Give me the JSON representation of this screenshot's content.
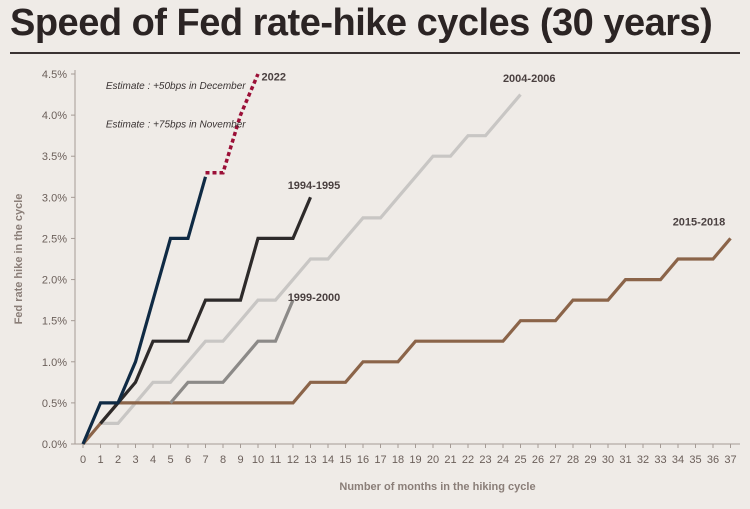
{
  "title": "Speed of Fed rate-hike cycles (30 years)",
  "chart_data": {
    "type": "line",
    "xlabel": "Number of months in the hiking cycle",
    "ylabel": "Fed rate hike in the cycle",
    "xlim": [
      0,
      37
    ],
    "ylim": [
      0,
      4.5
    ],
    "x_ticks": [
      0,
      1,
      2,
      3,
      4,
      5,
      6,
      7,
      8,
      9,
      10,
      11,
      12,
      13,
      14,
      15,
      16,
      17,
      18,
      19,
      20,
      21,
      22,
      23,
      24,
      25,
      26,
      27,
      28,
      29,
      30,
      31,
      32,
      33,
      34,
      35,
      36,
      37
    ],
    "y_ticks": [
      0,
      0.5,
      1.0,
      1.5,
      2.0,
      2.5,
      3.0,
      3.5,
      4.0,
      4.5
    ],
    "y_tick_labels": [
      "0.0%",
      "0.5%",
      "1.0%",
      "1.5%",
      "2.0%",
      "2.5%",
      "3.0%",
      "3.5%",
      "4.0%",
      "4.5%"
    ],
    "grid": false,
    "series": [
      {
        "name": "1994-1995",
        "color": "#2d2a2a",
        "dashed": false,
        "points": [
          [
            1,
            0.25
          ],
          [
            2,
            0.5
          ],
          [
            3,
            0.75
          ],
          [
            4,
            1.25
          ],
          [
            5,
            1.25
          ],
          [
            6,
            1.25
          ],
          [
            7,
            1.75
          ],
          [
            8,
            1.75
          ],
          [
            9,
            1.75
          ],
          [
            10,
            2.5
          ],
          [
            11,
            2.5
          ],
          [
            12,
            2.5
          ],
          [
            13,
            3.0
          ]
        ]
      },
      {
        "name": "1999-2000",
        "color": "#8c8a88",
        "dashed": false,
        "points": [
          [
            5,
            0.5
          ],
          [
            6,
            0.75
          ],
          [
            7,
            0.75
          ],
          [
            8,
            0.75
          ],
          [
            9,
            1.0
          ],
          [
            10,
            1.25
          ],
          [
            11,
            1.25
          ],
          [
            12,
            1.75
          ]
        ]
      },
      {
        "name": "2004-2006",
        "color": "#c8c6c4",
        "dashed": false,
        "points": [
          [
            1,
            0.25
          ],
          [
            2,
            0.25
          ],
          [
            3,
            0.5
          ],
          [
            4,
            0.75
          ],
          [
            5,
            0.75
          ],
          [
            6,
            1.0
          ],
          [
            7,
            1.25
          ],
          [
            8,
            1.25
          ],
          [
            9,
            1.5
          ],
          [
            10,
            1.75
          ],
          [
            11,
            1.75
          ],
          [
            12,
            2.0
          ],
          [
            13,
            2.25
          ],
          [
            14,
            2.25
          ],
          [
            15,
            2.5
          ],
          [
            16,
            2.75
          ],
          [
            17,
            2.75
          ],
          [
            18,
            3.0
          ],
          [
            19,
            3.25
          ],
          [
            20,
            3.5
          ],
          [
            21,
            3.5
          ],
          [
            22,
            3.75
          ],
          [
            23,
            3.75
          ],
          [
            24,
            4.0
          ],
          [
            25,
            4.25
          ]
        ]
      },
      {
        "name": "2015-2018",
        "color": "#8b6449",
        "dashed": false,
        "points": [
          [
            0,
            0
          ],
          [
            1,
            0.25
          ],
          [
            2,
            0.5
          ],
          [
            11,
            0.5
          ],
          [
            12,
            0.5
          ],
          [
            13,
            0.75
          ],
          [
            14,
            0.75
          ],
          [
            15,
            0.75
          ],
          [
            16,
            1.0
          ],
          [
            17,
            1.0
          ],
          [
            18,
            1.0
          ],
          [
            19,
            1.25
          ],
          [
            20,
            1.25
          ],
          [
            24,
            1.25
          ],
          [
            25,
            1.5
          ],
          [
            26,
            1.5
          ],
          [
            27,
            1.5
          ],
          [
            28,
            1.75
          ],
          [
            29,
            1.75
          ],
          [
            30,
            1.75
          ],
          [
            31,
            2.0
          ],
          [
            32,
            2.0
          ],
          [
            33,
            2.0
          ],
          [
            34,
            2.25
          ],
          [
            35,
            2.25
          ],
          [
            36,
            2.25
          ],
          [
            37,
            2.5
          ]
        ]
      },
      {
        "name": "2022",
        "color": "#0f2a44",
        "dashed": false,
        "points": [
          [
            0,
            0
          ],
          [
            1,
            0.5
          ],
          [
            2,
            0.5
          ],
          [
            3,
            1.0
          ],
          [
            4,
            1.75
          ],
          [
            5,
            2.5
          ],
          [
            6,
            2.5
          ],
          [
            7,
            3.25
          ]
        ]
      },
      {
        "name": "2022 estimate",
        "color": "#9b0f37",
        "dashed": true,
        "points": [
          [
            7,
            3.3
          ],
          [
            8,
            3.3
          ],
          [
            9,
            4.0
          ],
          [
            10,
            4.5
          ]
        ]
      }
    ],
    "annotations": [
      {
        "text": "Estimate : +50bps in December",
        "x": 5.3,
        "y": 4.32
      },
      {
        "text": "Estimate : +75bps in November",
        "x": 5.3,
        "y": 3.85
      }
    ]
  }
}
